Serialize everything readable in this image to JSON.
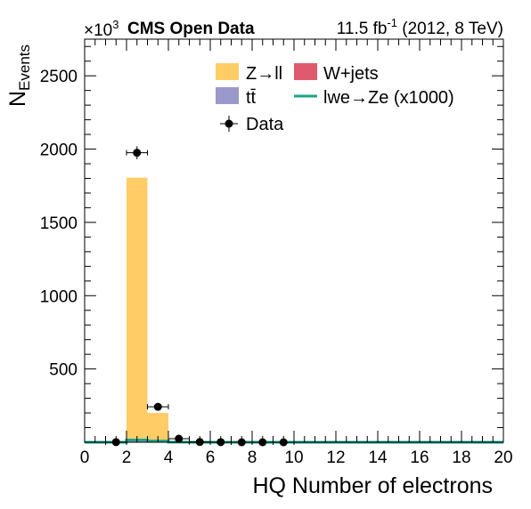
{
  "chart_data": {
    "type": "bar",
    "experiment_label": "CMS Open Data",
    "lumi_text": "11.5 fb",
    "lumi_sup": "-1",
    "lumi_rest": " (2012, 8 TeV)",
    "multiplier_base": "×10",
    "multiplier_exp": "3",
    "xlabel": "HQ Number of electrons",
    "ylabel_main": "N",
    "ylabel_sub": "Events",
    "xlim": [
      0,
      20
    ],
    "ylim": [
      0,
      2750
    ],
    "x_ticks": [
      0,
      2,
      4,
      6,
      8,
      10,
      12,
      14,
      16,
      18,
      20
    ],
    "y_ticks": [
      500,
      1000,
      1500,
      2000,
      2500
    ],
    "bin_width": 1,
    "colors": {
      "zll": "#ffcc66",
      "wjets": "#e05a6e",
      "ttbar": "#9999cc",
      "signal": "#1aa38a"
    },
    "legend": {
      "zll": "Z→ll",
      "wjets": "W+jets",
      "ttbar": "tt̄",
      "signal": "lwe→Ze (x1000)",
      "data": "Data"
    },
    "stack_order": [
      "ttbar",
      "wjets",
      "zll"
    ],
    "series": [
      {
        "key": "ttbar",
        "type": "stacked-bar",
        "bin_low_edges": [
          2,
          3
        ],
        "values": [
          10,
          5
        ]
      },
      {
        "key": "wjets",
        "type": "stacked-bar",
        "bin_low_edges": [
          2,
          3
        ],
        "values": [
          5,
          2
        ]
      },
      {
        "key": "zll",
        "type": "stacked-bar",
        "bin_low_edges": [
          2,
          3
        ],
        "values": [
          1790,
          193
        ]
      },
      {
        "key": "signal",
        "type": "line",
        "bin_low_edges": [
          0,
          1,
          2,
          3,
          4,
          5,
          6,
          7,
          8,
          9,
          10,
          11,
          12,
          13,
          14,
          15,
          16,
          17,
          18,
          19
        ],
        "values": [
          0,
          0,
          15,
          8,
          1,
          0,
          0,
          0,
          0,
          0,
          0,
          0,
          0,
          0,
          0,
          0,
          0,
          0,
          0,
          0
        ]
      },
      {
        "key": "data",
        "type": "points",
        "x": [
          1.5,
          2.5,
          3.5,
          4.5,
          5.5,
          6.5,
          7.5,
          8.5,
          9.5
        ],
        "values": [
          1,
          1975,
          242,
          24,
          2,
          1,
          0,
          0,
          0
        ]
      }
    ]
  }
}
